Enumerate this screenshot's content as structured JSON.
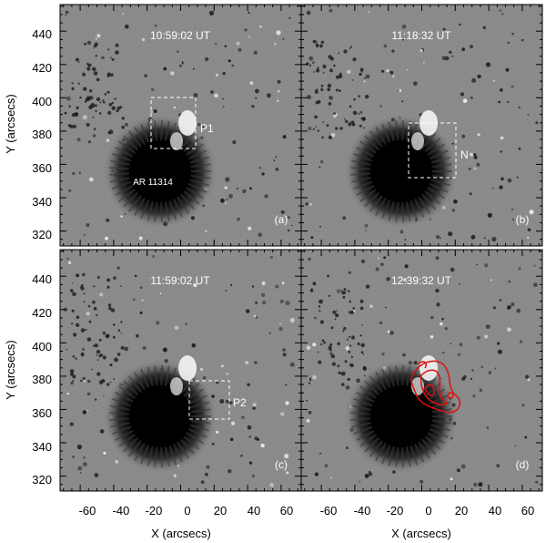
{
  "figure": {
    "y_axis_label": "Y (arcsecs)",
    "x_axis_label": "X (arcsecs)",
    "x_ticks": [
      "-60",
      "-40",
      "-20",
      "0",
      "20",
      "40",
      "60"
    ],
    "y_ticks": [
      "440",
      "420",
      "400",
      "380",
      "360",
      "340",
      "320"
    ]
  },
  "panels": [
    {
      "id": "a",
      "time": "10:59:02 UT",
      "letter": "(a)",
      "box_label": "P1",
      "spot_label": "AR 11314"
    },
    {
      "id": "b",
      "time": "11:18:32 UT",
      "letter": "(b)",
      "box_label": "N"
    },
    {
      "id": "c",
      "time": "11:59:02 UT",
      "letter": "(c)",
      "box_label": "P2"
    },
    {
      "id": "d",
      "time": "12:39:32 UT",
      "letter": "(d)",
      "contour_color": "#e01010"
    }
  ],
  "colors": {
    "background_gray": "#808080",
    "umbra": "#000000",
    "contour": "#e01010"
  }
}
